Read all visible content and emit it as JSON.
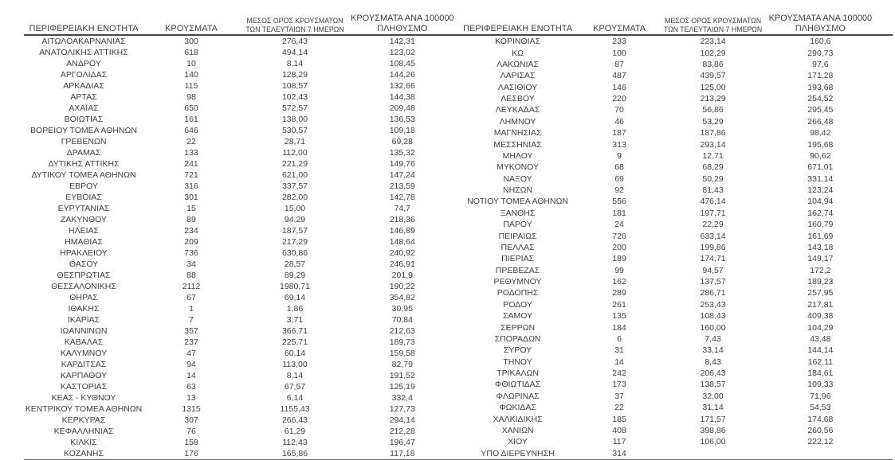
{
  "columns": [
    {
      "label": "ΠΕΡΙΦΕΡΕΙΑΚΗ ΕΝΟΤΗΤΑ"
    },
    {
      "label": "ΚΡΟΥΣΜΑΤΑ"
    },
    {
      "label_line1": "ΜΕΣΟΣ ΟΡΟΣ ΚΡΟΥΣΜΑΤΩΝ",
      "label_line2": "ΤΩΝ ΤΕΛΕΥΤΑΙΩΝ 7 ΗΜΕΡΩΝ"
    },
    {
      "label_line1": "ΚΡΟΥΣΜΑΤΑ ΑΝΑ 100000",
      "label_line2": "ΠΛΗΘΥΣΜΟ"
    }
  ],
  "left_table": {
    "rows": [
      [
        "ΑΙΤΩΛΟΑΚΑΡΝΑΝΙΑΣ",
        "300",
        "276,43",
        "142,31"
      ],
      [
        "ΑΝΑΤΟΛΙΚΗΣ ΑΤΤΙΚΗΣ",
        "618",
        "494,14",
        "123,02"
      ],
      [
        "ΑΝΔΡΟΥ",
        "10",
        "8,14",
        "108,45"
      ],
      [
        "ΑΡΓΟΛΙΔΑΣ",
        "140",
        "128,29",
        "144,26"
      ],
      [
        "ΑΡΚΑΔΙΑΣ",
        "115",
        "108,57",
        "132,66"
      ],
      [
        "ΑΡΤΑΣ",
        "98",
        "102,43",
        "144,38"
      ],
      [
        "ΑΧΑΪΑΣ",
        "650",
        "572,57",
        "209,48"
      ],
      [
        "ΒΟΙΩΤΙΑΣ",
        "161",
        "138,00",
        "136,53"
      ],
      [
        "ΒΟΡΕΙΟΥ ΤΟΜΕΑ ΑΘΗΝΩΝ",
        "646",
        "530,57",
        "109,18"
      ],
      [
        "ΓΡΕΒΕΝΩΝ",
        "22",
        "28,71",
        "69,28"
      ],
      [
        "ΔΡΑΜΑΣ",
        "133",
        "112,00",
        "135,32"
      ],
      [
        "ΔΥΤΙΚΗΣ ΑΤΤΙΚΗΣ",
        "241",
        "221,29",
        "149,76"
      ],
      [
        "ΔΥΤΙΚΟΥ ΤΟΜΕΑ ΑΘΗΝΩΝ",
        "721",
        "621,00",
        "147,24"
      ],
      [
        "ΕΒΡΟΥ",
        "316",
        "337,57",
        "213,59"
      ],
      [
        "ΕΥΒΟΙΑΣ",
        "301",
        "282,00",
        "142,78"
      ],
      [
        "ΕΥΡΥΤΑΝΙΑΣ",
        "15",
        "15,00",
        "74,7"
      ],
      [
        "ΖΑΚΥΝΘΟΥ",
        "89",
        "94,29",
        "218,36"
      ],
      [
        "ΗΛΕΙΑΣ",
        "234",
        "187,57",
        "146,89"
      ],
      [
        "ΗΜΑΘΙΑΣ",
        "209",
        "217,29",
        "148,64"
      ],
      [
        "ΗΡΑΚΛΕΙΟΥ",
        "736",
        "630,86",
        "240,92"
      ],
      [
        "ΘΑΣΟΥ",
        "34",
        "28,57",
        "246,91"
      ],
      [
        "ΘΕΣΠΡΩΤΙΑΣ",
        "88",
        "89,29",
        "201,9"
      ],
      [
        "ΘΕΣΣΑΛΟΝΙΚΗΣ",
        "2112",
        "1980,71",
        "190,22"
      ],
      [
        "ΘΗΡΑΣ",
        "67",
        "69,14",
        "354,82"
      ],
      [
        "ΙΘΑΚΗΣ",
        "1",
        "1,86",
        "30,95"
      ],
      [
        "ΙΚΑΡΙΑΣ",
        "7",
        "3,71",
        "70,84"
      ],
      [
        "ΙΩΑΝΝΙΝΩΝ",
        "357",
        "366,71",
        "212,63"
      ],
      [
        "ΚΑΒΑΛΑΣ",
        "237",
        "225,71",
        "189,73"
      ],
      [
        "ΚΑΛΥΜΝΟΥ",
        "47",
        "60,14",
        "159,58"
      ],
      [
        "ΚΑΡΔΙΤΣΑΣ",
        "94",
        "113,00",
        "82,79"
      ],
      [
        "ΚΑΡΠΑΘΟΥ",
        "14",
        "8,14",
        "191,52"
      ],
      [
        "ΚΑΣΤΟΡΙΑΣ",
        "63",
        "67,57",
        "125,19"
      ],
      [
        "ΚΕΑΣ - ΚΥΘΝΟΥ",
        "13",
        "6,14",
        "332,4"
      ],
      [
        "ΚΕΝΤΡΙΚΟΥ ΤΟΜΕΑ ΑΘΗΝΩΝ",
        "1315",
        "1155,43",
        "127,73"
      ],
      [
        "ΚΕΡΚΥΡΑΣ",
        "307",
        "266,43",
        "294,14"
      ],
      [
        "ΚΕΦΑΛΛΗΝΙΑΣ",
        "76",
        "61,29",
        "212,28"
      ],
      [
        "ΚΙΛΚΙΣ",
        "158",
        "112,43",
        "196,47"
      ],
      [
        "ΚΟΖΑΝΗΣ",
        "176",
        "165,86",
        "117,18"
      ]
    ]
  },
  "right_table": {
    "rows": [
      [
        "ΚΟΡΙΝΘΙΑΣ",
        "233",
        "223,14",
        "160,6"
      ],
      [
        "ΚΩ",
        "100",
        "102,29",
        "290,73"
      ],
      [
        "ΛΑΚΩΝΙΑΣ",
        "87",
        "83,86",
        "97,6"
      ],
      [
        "ΛΑΡΙΣΑΣ",
        "487",
        "439,57",
        "171,28"
      ],
      [
        "ΛΑΣΙΘΙΟΥ",
        "146",
        "125,00",
        "193,68"
      ],
      [
        "ΛΕΣΒΟΥ",
        "220",
        "213,29",
        "254,52"
      ],
      [
        "ΛΕΥΚΑΔΑΣ",
        "70",
        "56,86",
        "295,45"
      ],
      [
        "ΛΗΜΝΟΥ",
        "46",
        "53,29",
        "266,48"
      ],
      [
        "ΜΑΓΝΗΣΙΑΣ",
        "187",
        "187,86",
        "98,42"
      ],
      [
        "ΜΕΣΣΗΝΙΑΣ",
        "313",
        "293,14",
        "195,68"
      ],
      [
        "ΜΗΛΟΥ",
        "9",
        "12,71",
        "90,62"
      ],
      [
        "ΜΥΚΟΝΟΥ",
        "68",
        "68,29",
        "671,01"
      ],
      [
        "ΝΑΞΟΥ",
        "69",
        "50,29",
        "331,14"
      ],
      [
        "ΝΗΣΩΝ",
        "92",
        "81,43",
        "123,24"
      ],
      [
        "ΝΟΤΙΟΥ ΤΟΜΕΑ ΑΘΗΝΩΝ",
        "556",
        "476,14",
        "104,94"
      ],
      [
        "ΞΑΝΘΗΣ",
        "181",
        "197,71",
        "162,74"
      ],
      [
        "ΠΑΡΟΥ",
        "24",
        "22,29",
        "160,79"
      ],
      [
        "ΠΕΙΡΑΙΩΣ",
        "726",
        "633,14",
        "161,69"
      ],
      [
        "ΠΕΛΛΑΣ",
        "200",
        "199,86",
        "143,18"
      ],
      [
        "ΠΙΕΡΙΑΣ",
        "189",
        "174,71",
        "149,17"
      ],
      [
        "ΠΡΕΒΕΖΑΣ",
        "99",
        "94,57",
        "172,2"
      ],
      [
        "ΡΕΘΥΜΝΟΥ",
        "162",
        "137,57",
        "189,23"
      ],
      [
        "ΡΟΔΟΠΗΣ",
        "289",
        "286,71",
        "257,95"
      ],
      [
        "ΡΟΔΟΥ",
        "261",
        "253,43",
        "217,81"
      ],
      [
        "ΣΑΜΟΥ",
        "135",
        "108,43",
        "409,38"
      ],
      [
        "ΣΕΡΡΩΝ",
        "184",
        "160,00",
        "104,29"
      ],
      [
        "ΣΠΟΡΑΔΩΝ",
        "6",
        "7,43",
        "43,48"
      ],
      [
        "ΣΥΡΟΥ",
        "31",
        "33,14",
        "144,14"
      ],
      [
        "ΤΗΝΟΥ",
        "14",
        "8,43",
        "162,11"
      ],
      [
        "ΤΡΙΚΑΛΩΝ",
        "242",
        "206,43",
        "184,61"
      ],
      [
        "ΦΘΙΩΤΙΔΑΣ",
        "173",
        "138,57",
        "109,33"
      ],
      [
        "ΦΛΩΡΙΝΑΣ",
        "37",
        "32,00",
        "71,96"
      ],
      [
        "ΦΩΚΙΔΑΣ",
        "22",
        "31,14",
        "54,53"
      ],
      [
        "ΧΑΛΚΙΔΙΚΗΣ",
        "185",
        "171,57",
        "174,68"
      ],
      [
        "ΧΑΝΙΩΝ",
        "408",
        "398,86",
        "260,56"
      ],
      [
        "ΧΙΟΥ",
        "117",
        "106,00",
        "222,12"
      ],
      [
        "ΥΠΟ ΔΙΕΡΕΥΝΗΣΗ",
        "314",
        "",
        ""
      ]
    ]
  },
  "colors": {
    "text": "#3f3f3f",
    "rule_dark": "#454545",
    "rule_bottom": "#6a6a6a",
    "background": "#ffffff"
  }
}
